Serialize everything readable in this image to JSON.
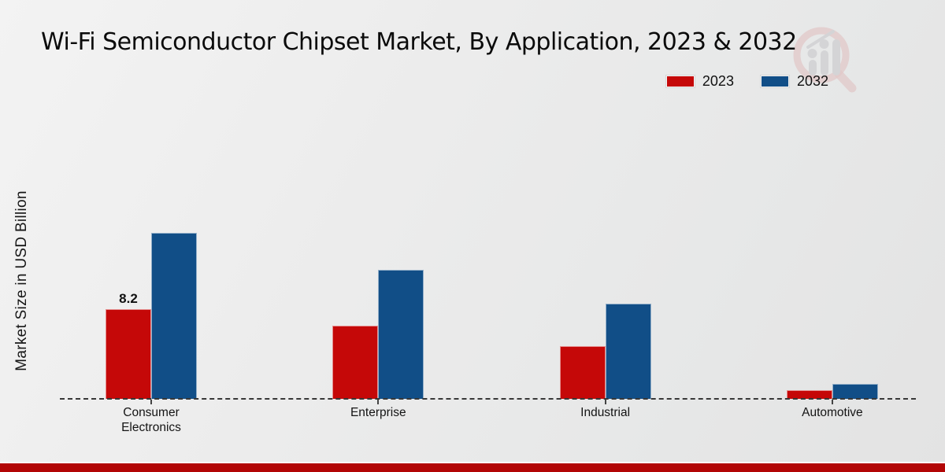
{
  "page": {
    "title": "Wi-Fi Semiconductor Chipset Market, By Application, 2023 & 2032",
    "y_axis_label": "Market Size in USD Billion"
  },
  "colors": {
    "series_2023_red": "#c50808",
    "series_2032_blue": "#114e87",
    "footer_red": "#b20505",
    "watermark_pink": "#dbaaaa",
    "watermark_gray": "#c2c2c6"
  },
  "chart_data": {
    "type": "bar",
    "title": "Wi-Fi Semiconductor Chipset Market, By Application, 2023 & 2032",
    "xlabel": "",
    "ylabel": "Market Size in USD Billion",
    "categories": [
      "Consumer Electronics",
      "Enterprise",
      "Industrial",
      "Automotive"
    ],
    "series": [
      {
        "name": "2023",
        "color": "#c50808",
        "values": [
          8.2,
          6.7,
          4.8,
          0.8
        ]
      },
      {
        "name": "2032",
        "color": "#114e87",
        "values": [
          15.2,
          11.8,
          8.7,
          1.4
        ]
      }
    ],
    "ylim": [
      0,
      16
    ],
    "grid": false,
    "legend_position": "top-right",
    "baseline_style": "dashed",
    "annotations": [
      {
        "category_index": 0,
        "series_index": 0,
        "text": "8.2"
      }
    ]
  }
}
